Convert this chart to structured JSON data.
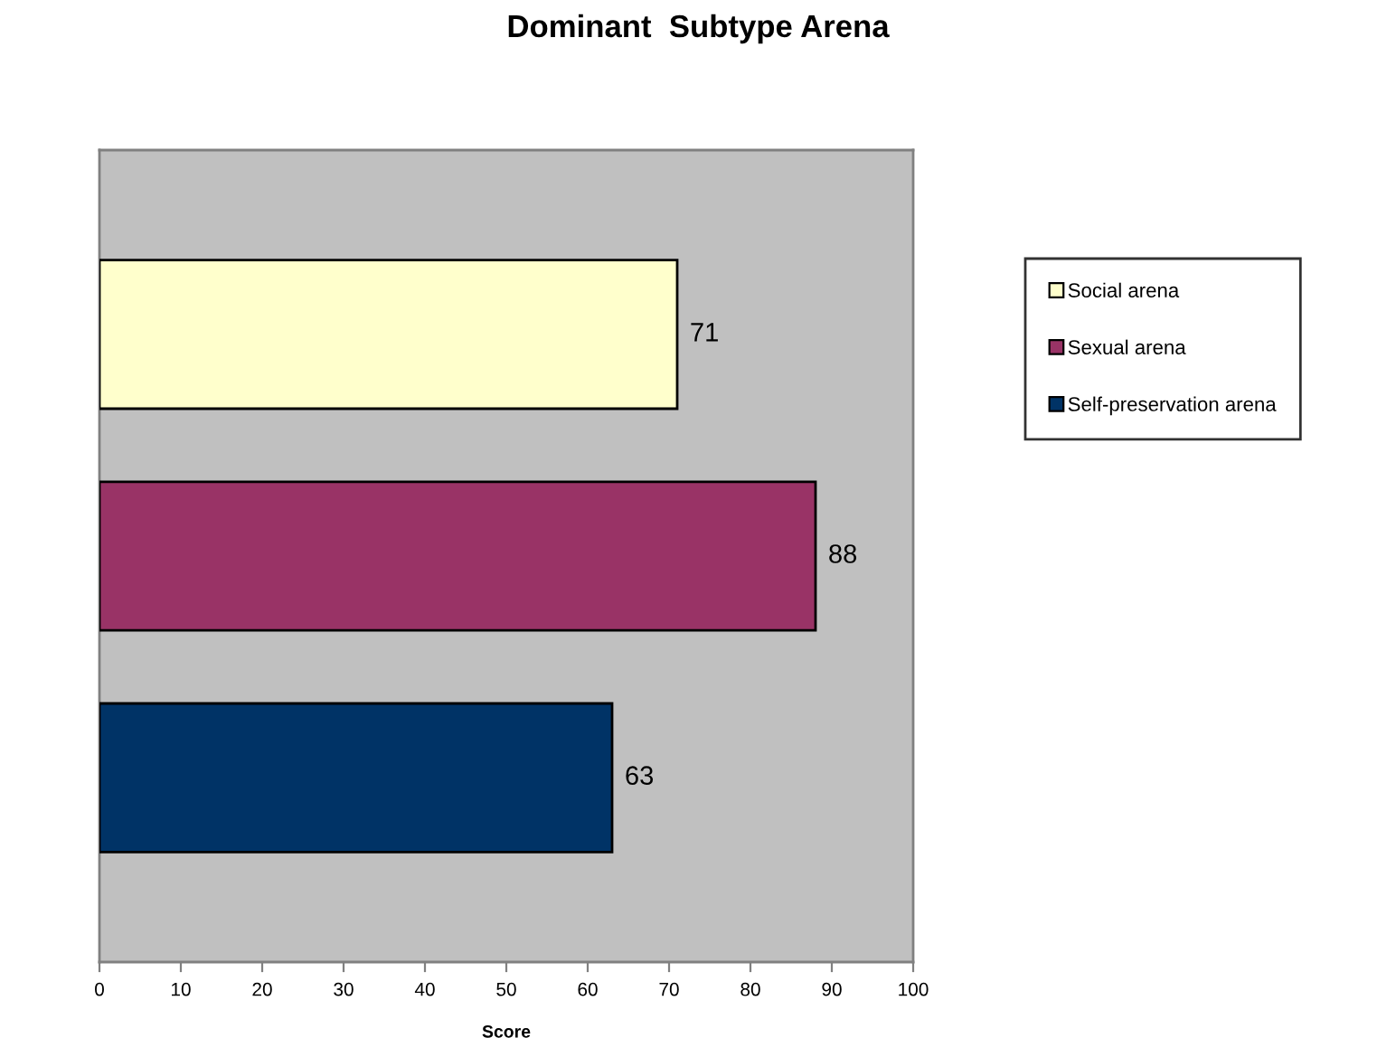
{
  "chart_data": {
    "type": "bar",
    "orientation": "horizontal",
    "title": "Dominant  Subtype Arena",
    "xlabel": "Score",
    "categories": [
      null
    ],
    "series": [
      {
        "name": "Social arena",
        "color": "#ffffcc",
        "values": [
          71
        ]
      },
      {
        "name": "Sexual arena",
        "color": "#993366",
        "values": [
          88
        ]
      },
      {
        "name": "Self-preservation arena",
        "color": "#003366",
        "values": [
          63
        ]
      }
    ],
    "xlim": [
      0,
      100
    ],
    "xticks": [
      0,
      10,
      20,
      30,
      40,
      50,
      60,
      70,
      80,
      90,
      100
    ],
    "data_labels": true,
    "legend": "right"
  }
}
